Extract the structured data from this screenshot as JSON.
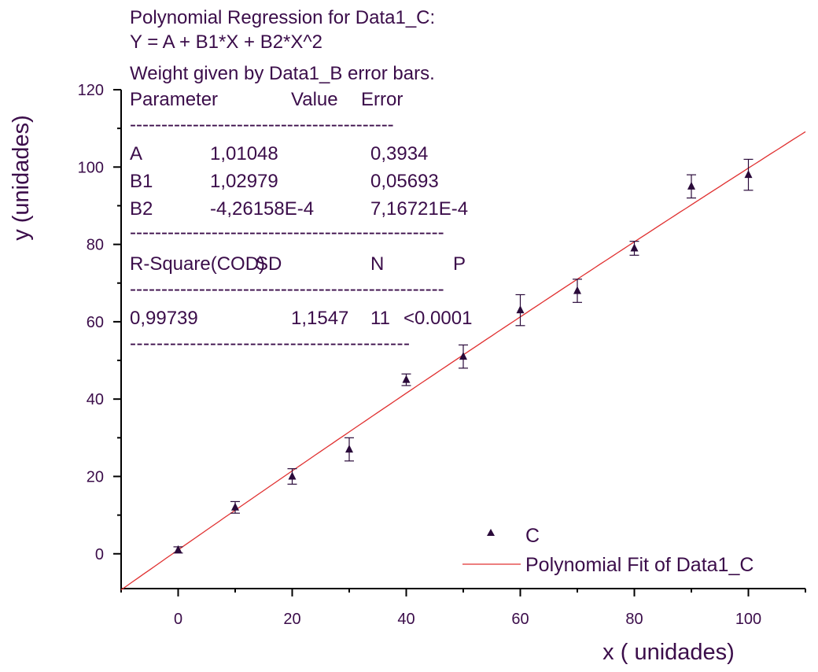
{
  "chart_data": {
    "type": "scatter",
    "xlabel": "x ( unidades)",
    "ylabel": "y (unidades)",
    "xlim": [
      -10,
      110
    ],
    "ylim": [
      -9,
      120
    ],
    "x_ticks": [
      0,
      20,
      40,
      60,
      80,
      100
    ],
    "y_ticks": [
      0,
      20,
      40,
      60,
      80,
      100,
      120
    ],
    "grid": false,
    "legend_position": "bottom-right",
    "colors": {
      "text": "#3b0d4a",
      "marker": "#2a0a3a",
      "fit": "#e03030",
      "axis": "#000000"
    },
    "series": [
      {
        "name": "C",
        "kind": "scatter-errorbars",
        "x": [
          0,
          10,
          20,
          30,
          40,
          50,
          60,
          70,
          80,
          90,
          100
        ],
        "y": [
          1,
          12,
          20,
          27,
          45,
          51,
          63,
          68,
          79,
          95,
          98
        ],
        "error": [
          0.8,
          1.5,
          2,
          3,
          1.5,
          3,
          4,
          3,
          1.8,
          3,
          4
        ]
      },
      {
        "name": "Polynomial Fit of Data1_C",
        "kind": "fit-line",
        "coefficients": {
          "A": 1.01048,
          "B1": 1.02979,
          "B2": -0.000426158
        },
        "x_range": [
          -10,
          110
        ]
      }
    ],
    "annotation": {
      "header_lines": [
        "Polynomial Regression for Data1_C:",
        "Y = A + B1*X + B2*X^2",
        "Weight given by Data1_B error bars."
      ],
      "param_header": [
        "Parameter",
        "Value",
        "Error"
      ],
      "params": [
        [
          "A",
          "1,01048",
          "0,3934"
        ],
        [
          "B1",
          "1,02979",
          "0,05693"
        ],
        [
          "B2",
          "-4,26158E-4",
          "7,16721E-4"
        ]
      ],
      "stats_header": [
        "R-Square(COD)",
        "SD",
        "N",
        "P"
      ],
      "stats": [
        "0,99739",
        "1,1547",
        "11",
        "<0.0001"
      ],
      "rule_long": "--------------------------------------------------",
      "rule_short": "------------------------------------------"
    }
  }
}
